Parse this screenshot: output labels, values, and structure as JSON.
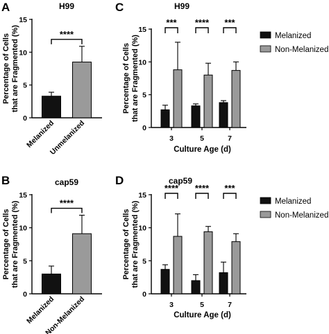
{
  "colors": {
    "melanized": "#111111",
    "non_melanized": "#9a9a9a",
    "axis": "#000000"
  },
  "chart_data": [
    {
      "panel": "A",
      "type": "bar",
      "title": "H99",
      "ylabel_line1": "Percentage of Cells",
      "ylabel_line2": "that are Fragmented (%)",
      "xlabel": "",
      "ylim": [
        0,
        15
      ],
      "yticks": [
        "0",
        "5",
        "10",
        "15"
      ],
      "categories": [
        "Melanized",
        "Unmelanized"
      ],
      "values": [
        3.3,
        8.5
      ],
      "errors": [
        0.6,
        2.4
      ],
      "significance": "****"
    },
    {
      "panel": "B",
      "type": "bar",
      "title": "cap59",
      "ylabel_line1": "Percentage of Cells",
      "ylabel_line2": "that are Fragmented (%)",
      "xlabel": "",
      "ylim": [
        0,
        15
      ],
      "yticks": [
        "0",
        "5",
        "10",
        "15"
      ],
      "categories": [
        "Melanized",
        "Non-Melanized"
      ],
      "values": [
        3.0,
        9.1
      ],
      "errors": [
        1.2,
        2.8
      ],
      "significance": "****"
    },
    {
      "panel": "C",
      "type": "bar",
      "title": "H99",
      "ylabel_line1": "Percentage of Cells",
      "ylabel_line2": "that are Fragmented (%)",
      "xlabel": "Culture Age (d)",
      "ylim": [
        0,
        15
      ],
      "yticks": [
        "0",
        "5",
        "10",
        "15"
      ],
      "categories": [
        "3",
        "5",
        "7"
      ],
      "series": [
        {
          "name": "Melanized",
          "values": [
            2.7,
            3.3,
            3.8
          ],
          "errors": [
            0.7,
            0.3,
            0.3
          ]
        },
        {
          "name": "Non-Melanized",
          "values": [
            8.8,
            8.0,
            8.7
          ],
          "errors": [
            4.2,
            1.8,
            1.3
          ]
        }
      ],
      "significance": [
        "***",
        "****",
        "***"
      ],
      "legend": "right"
    },
    {
      "panel": "D",
      "type": "bar",
      "title": "cap59",
      "ylabel_line1": "Percentage of Cells",
      "ylabel_line2": "that are Fragmented (%)",
      "xlabel": "Culture Age (d)",
      "ylim": [
        0,
        15
      ],
      "yticks": [
        "0",
        "5",
        "10",
        "15"
      ],
      "categories": [
        "3",
        "5",
        "7"
      ],
      "series": [
        {
          "name": "Melanized",
          "values": [
            3.7,
            2.0,
            3.2
          ],
          "errors": [
            0.7,
            0.9,
            1.6
          ]
        },
        {
          "name": "Non-Melanized",
          "values": [
            8.7,
            9.4,
            7.9
          ],
          "errors": [
            3.4,
            0.8,
            1.2
          ]
        }
      ],
      "significance": [
        "****",
        "****",
        "***"
      ],
      "legend": "right"
    }
  ]
}
